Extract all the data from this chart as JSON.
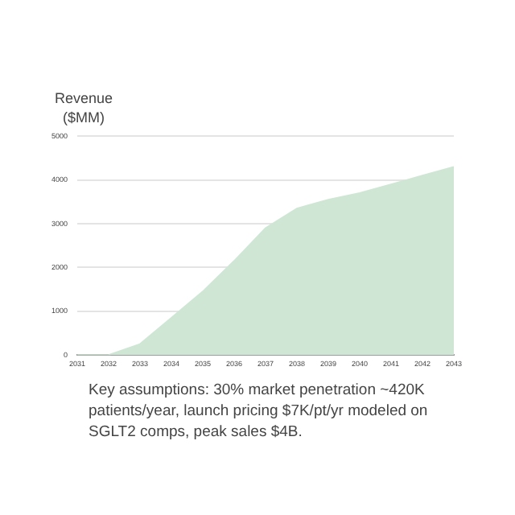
{
  "chart_data": {
    "type": "area",
    "ylabel": "Revenue\n($MM)",
    "categories": [
      "2031",
      "2032",
      "2033",
      "2034",
      "2035",
      "2036",
      "2037",
      "2038",
      "2039",
      "2040",
      "2041",
      "2042",
      "2043"
    ],
    "values": [
      0,
      0,
      250,
      850,
      1450,
      2150,
      2900,
      3350,
      3550,
      3700,
      3900,
      4100,
      4300
    ],
    "color": "#cfe6d5",
    "ylim": [
      0,
      5000
    ],
    "yticks": [
      0,
      1000,
      2000,
      3000,
      4000,
      5000
    ],
    "grid": "y",
    "legend": false,
    "annotations": [
      "Key assumptions: 30% market penetration ~420K patients/year, launch pricing $7K/pt/yr modeled on SGLT2 comps, peak sales $4B."
    ]
  }
}
